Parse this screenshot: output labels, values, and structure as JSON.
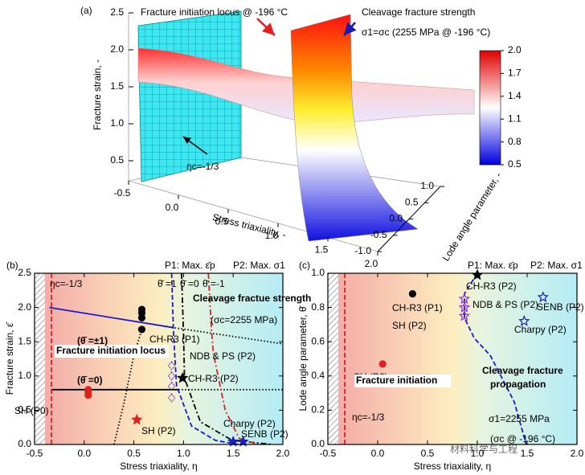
{
  "chart_data": [
    {
      "type": "surface",
      "panel_label": "(a)",
      "zlabel": "Fracture strain, -",
      "xlabel": "Stress triaxiality, -",
      "ylabel": "Lode angle parameter, -",
      "xlim": [
        -0.5,
        2.0
      ],
      "ylim": [
        -1,
        1
      ],
      "zlim": [
        0.5,
        2.5
      ],
      "xticks": [
        -0.5,
        {
          "value": 0,
          "label": "0.0"
        },
        0.5,
        {
          "value": 1,
          "label": "1.0"
        },
        1.5,
        {
          "value": 2,
          "label": "2.0"
        }
      ],
      "yticks": [
        {
          "value": 1,
          "label": "1.0"
        },
        0.5,
        {
          "value": 0,
          "label": "0.0"
        },
        -0.5,
        {
          "value": -1,
          "label": "-1.0"
        }
      ],
      "zticks": [
        0.5,
        {
          "value": 1,
          "label": "1.0"
        },
        1.5,
        {
          "value": 2,
          "label": "2.0"
        },
        2.5
      ],
      "colorbar": {
        "lim": [
          0.5,
          2.0
        ],
        "colors": [
          "#0000e0",
          "#ffffff",
          "#e00000"
        ],
        "ticks": [
          0.5,
          0.8,
          1.1,
          1.4,
          1.7,
          {
            "value": 2,
            "label": "2.0"
          }
        ]
      },
      "annotations": [
        {
          "text": "Fracture initiation locus @ -196 °C",
          "color": "#e02020"
        },
        {
          "text": "Cleavage fracture strength",
          "color": "#1a1ab0"
        },
        {
          "text": "σ1=σc (2255 MPa @ -196 °C)",
          "color": "#1a1ab0"
        },
        {
          "text": "ηc=-1/3",
          "color": "#000000"
        }
      ]
    },
    {
      "type": "line",
      "panel_label": "(b)",
      "xlabel": "Stress triaxiality, η",
      "ylabel": "Fracture strain, ε̄",
      "xlim": [
        -0.5,
        2.0
      ],
      "ylim": [
        0,
        2.5
      ],
      "xticks": [
        -0.5,
        {
          "value": 0,
          "label": "0.0"
        },
        0.5,
        {
          "value": 1,
          "label": "1.0"
        },
        1.5,
        {
          "value": 2,
          "label": "2.0"
        }
      ],
      "yticks": [
        {
          "value": 0,
          "label": "0.0"
        },
        0.5,
        {
          "value": 1,
          "label": "1.0"
        },
        1.5,
        {
          "value": 2,
          "label": "2.0"
        },
        2.5
      ],
      "series": [
        {
          "color": "#1a1ad0",
          "style": "solid",
          "x": [
            -0.35,
            0.88
          ],
          "values": [
            2.0,
            1.71
          ]
        },
        {
          "color": "#000000",
          "style": "dotted",
          "x": [
            0.88,
            2.0
          ],
          "values": [
            1.71,
            1.47
          ]
        },
        {
          "color": "#000000",
          "style": "solid",
          "x": [
            -0.33,
            0.95
          ],
          "values": [
            0.8,
            0.8
          ]
        },
        {
          "color": "#000000",
          "style": "dotted",
          "x": [
            0.95,
            2.0
          ],
          "values": [
            0.8,
            0.8
          ]
        },
        {
          "color": "#e02020",
          "style": "dashed",
          "x": [
            -0.33,
            -0.33
          ],
          "values": [
            0,
            2.5
          ]
        },
        {
          "color": "#1a1ad0",
          "style": "dashed",
          "x": [
            0.88,
            0.9,
            0.93,
            1.08,
            1.32,
            1.55
          ],
          "values": [
            2.5,
            1.6,
            0.86,
            0.27,
            0.06,
            0
          ]
        },
        {
          "color": "#000000",
          "style": "dashdot",
          "x": [
            0.98,
            1.0,
            1.01,
            1.17,
            1.49,
            1.9
          ],
          "values": [
            2.5,
            1.6,
            0.97,
            0.33,
            0.06,
            0
          ]
        },
        {
          "color": "#e02020",
          "style": "dashdot",
          "x": [
            1.25,
            1.28,
            1.3,
            1.42,
            1.56,
            1.75
          ],
          "values": [
            2.5,
            1.7,
            1.33,
            0.5,
            0.09,
            0
          ]
        },
        {
          "color": "#000000",
          "style": "dotted",
          "x": [
            0.3,
            0.4,
            0.5,
            0.58
          ],
          "values": [
            0,
            0.6,
            1.3,
            1.68
          ]
        },
        {
          "name": "SH (P0)",
          "color": "#e02020",
          "marker": "circle",
          "x": [
            0.04,
            0.04,
            0.04
          ],
          "values": [
            0.72,
            0.77,
            0.8
          ]
        },
        {
          "name": "CH-R3 (P1)",
          "color": "#000000",
          "marker": "circle",
          "x": [
            0.58,
            0.58,
            0.58,
            0.58
          ],
          "values": [
            1.97,
            1.92,
            1.85,
            1.68
          ]
        },
        {
          "name": "CH-R3 (P2)",
          "color": "#000000",
          "marker": "star",
          "x": [
            0.99
          ],
          "values": [
            0.97
          ]
        },
        {
          "name": "NDB & PS (P2)",
          "color": "#8a2be2",
          "marker": "diamond",
          "x": [
            0.88,
            0.88,
            0.88,
            0.88
          ],
          "values": [
            1.15,
            1.0,
            0.85,
            0.68
          ]
        },
        {
          "name": "SH (P2)",
          "color": "#e02020",
          "marker": "star",
          "x": [
            0.53
          ],
          "values": [
            0.36
          ]
        },
        {
          "name": "Charpy (P2)",
          "color": "#1a1ad0",
          "marker": "star",
          "x": [
            1.5
          ],
          "values": [
            0.04
          ]
        },
        {
          "name": "SENB (P2)",
          "color": "#1a1ad0",
          "marker": "star",
          "x": [
            1.6
          ],
          "values": [
            0.04
          ]
        }
      ],
      "annotations": [
        {
          "text": "ηc=-1/3",
          "color": "#e02020"
        },
        {
          "text": "θ̄ =1",
          "color": "#1a1ad0"
        },
        {
          "text": "θ̄ =0",
          "color": "#000000"
        },
        {
          "text": "θ̄ =-1",
          "color": "#e02020"
        },
        {
          "text": "P1: Max. ε̄p",
          "color": "#000000"
        },
        {
          "text": "P2: Max. σ1",
          "color": "#000000"
        },
        {
          "text": "Cleavage fractue strength",
          "color": "#1a1ad0",
          "bold": true
        },
        {
          "text": "(σc=2255 MPa)",
          "color": "#1a1ad0"
        },
        {
          "text": "Fracture initiation locus",
          "color": "#e02020",
          "bold": true
        },
        {
          "text": "(θ̄ =±1)",
          "color": "#1a1ad0",
          "bold": true
        },
        {
          "text": "(θ̄ =0)",
          "color": "#000000",
          "bold": true
        }
      ]
    },
    {
      "type": "scatter",
      "panel_label": "(c)",
      "xlabel": "Stress triaxiality, η",
      "ylabel": "Lode angle parameter, θ̄",
      "xlim": [
        -0.5,
        2.0
      ],
      "ylim": [
        0,
        1
      ],
      "xticks": [
        -0.5,
        {
          "value": 0,
          "label": "0.0"
        },
        0.5,
        {
          "value": 1,
          "label": "1.0"
        },
        1.5,
        {
          "value": 2,
          "label": "2.0"
        }
      ],
      "yticks": [
        {
          "value": 0,
          "label": "0.0"
        },
        0.2,
        0.4,
        0.6,
        0.8,
        {
          "value": 1,
          "label": "1.0"
        }
      ],
      "series": [
        {
          "color": "#e02020",
          "style": "dashed",
          "x": [
            -0.33,
            -0.33
          ],
          "values": [
            0,
            1
          ]
        },
        {
          "color": "#1a1ad0",
          "style": "dashed",
          "x": [
            1.0,
            0.87,
            0.87,
            0.97,
            1.13,
            1.37,
            1.49
          ],
          "values": [
            1,
            0.88,
            0.74,
            0.62,
            0.52,
            0.25,
            0
          ]
        },
        {
          "name": "SH (P0)",
          "color": "#e02020",
          "marker": "circle",
          "x": [
            0.05
          ],
          "values": [
            0.47
          ]
        },
        {
          "name": "SH (P2)",
          "color": "#e02020",
          "marker": "star",
          "x": [
            0.5
          ],
          "values": [
            0.38
          ]
        },
        {
          "name": "CH-R3 (P1)",
          "color": "#000000",
          "marker": "circle",
          "x": [
            0.35
          ],
          "values": [
            0.88
          ]
        },
        {
          "name": "CH-R3 (P2)",
          "color": "#000000",
          "marker": "star",
          "x": [
            1.0
          ],
          "values": [
            0.99
          ]
        },
        {
          "name": "NDB & PS (P2)",
          "color": "#8a2be2",
          "marker": "star-open",
          "x": [
            0.87,
            0.87,
            0.87
          ],
          "values": [
            0.85,
            0.8,
            0.75
          ]
        },
        {
          "name": "Charpy (P2)",
          "color": "#1a1ad0",
          "marker": "star-open",
          "x": [
            1.47
          ],
          "values": [
            0.72
          ]
        },
        {
          "name": "SENB (P2)",
          "color": "#1a1ad0",
          "marker": "star-open",
          "x": [
            1.66
          ],
          "values": [
            0.86
          ]
        }
      ],
      "annotations": [
        {
          "text": "ηc=-1/3",
          "color": "#e02020"
        },
        {
          "text": "P1: Max. ε̄p",
          "color": "#000000"
        },
        {
          "text": "P2: Max. σ1",
          "color": "#000000"
        },
        {
          "text": "Fracture initiation",
          "color": "#e02020",
          "bold": true
        },
        {
          "text": "Cleavage fracture",
          "color": "#1a1ad0",
          "bold": true
        },
        {
          "text": "propagation",
          "color": "#1a1ad0",
          "bold": true
        },
        {
          "text": "σ1=2255 MPa",
          "color": "#000000"
        },
        {
          "text": "(σc @ -196 °C)",
          "color": "#000000"
        }
      ]
    }
  ],
  "watermark": "材料科学与工程"
}
